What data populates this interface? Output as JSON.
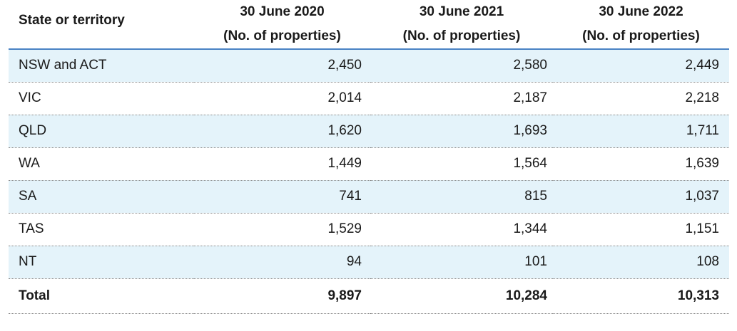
{
  "table": {
    "header": {
      "state_label": "State or territory",
      "columns": [
        {
          "date": "30 June 2020",
          "unit": "(No. of properties)"
        },
        {
          "date": "30 June 2021",
          "unit": "(No. of properties)"
        },
        {
          "date": "30 June 2022",
          "unit": "(No. of properties)"
        }
      ]
    },
    "rows": [
      {
        "state": "NSW and ACT",
        "values": [
          "2,450",
          "2,580",
          "2,449"
        ],
        "shaded": true
      },
      {
        "state": "VIC",
        "values": [
          "2,014",
          "2,187",
          "2,218"
        ],
        "shaded": false
      },
      {
        "state": "QLD",
        "values": [
          "1,620",
          "1,693",
          "1,711"
        ],
        "shaded": true
      },
      {
        "state": "WA",
        "values": [
          "1,449",
          "1,564",
          "1,639"
        ],
        "shaded": false
      },
      {
        "state": "SA",
        "values": [
          "741",
          "815",
          "1,037"
        ],
        "shaded": true
      },
      {
        "state": "TAS",
        "values": [
          "1,529",
          "1,344",
          "1,151"
        ],
        "shaded": false
      },
      {
        "state": "NT",
        "values": [
          "94",
          "101",
          "108"
        ],
        "shaded": true
      }
    ],
    "total": {
      "state": "Total",
      "values": [
        "9,897",
        "10,284",
        "10,313"
      ]
    },
    "colors": {
      "header_rule": "#4a83c4",
      "row_shade": "#e4f3fa"
    }
  }
}
